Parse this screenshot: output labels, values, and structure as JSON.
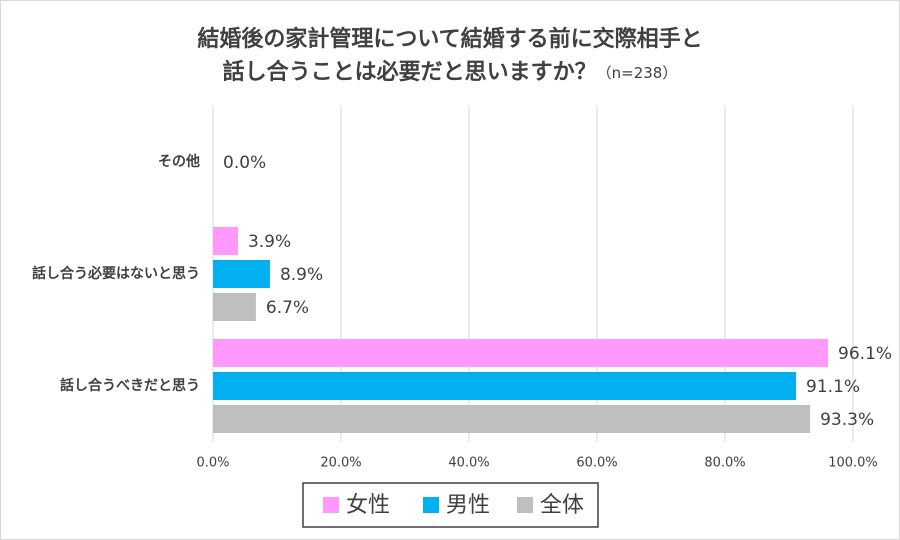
{
  "chart_data": {
    "type": "hbar",
    "title": [
      "結婚後の家計管理について結婚する前に交際相手と",
      "話し合うことは必要だと思いますか？"
    ],
    "subtitle": "（n=238）",
    "categories": [
      "その他",
      "話し合う必要はないと思う",
      "話し合うべきだと思う"
    ],
    "series": [
      {
        "name": "女性",
        "color": "#ff99ff",
        "values": [
          null,
          3.9,
          96.1
        ],
        "value_labels": [
          null,
          "3.9%",
          "96.1%"
        ]
      },
      {
        "name": "男性",
        "color": "#00b0f0",
        "values": [
          0,
          8.9,
          91.1
        ],
        "value_labels": [
          "0.0%",
          "8.9%",
          "91.1%"
        ]
      },
      {
        "name": "全体",
        "color": "#bfbfbf",
        "values": [
          null,
          6.7,
          93.3
        ],
        "value_labels": [
          null,
          "6.7%",
          "93.3%"
        ]
      }
    ],
    "xlim": [
      0,
      100
    ],
    "xticks": [
      {
        "value": 0,
        "label": "0.0%"
      },
      {
        "value": 20,
        "label": "20.0%"
      },
      {
        "value": 40,
        "label": "40.0%"
      },
      {
        "value": 60,
        "label": "60.0%"
      },
      {
        "value": 80,
        "label": "80.0%"
      },
      {
        "value": 100,
        "label": "100.0%"
      }
    ],
    "grid": true,
    "legend": "bottom"
  }
}
